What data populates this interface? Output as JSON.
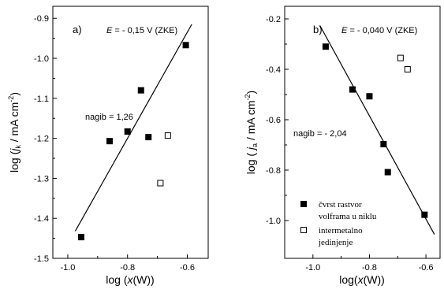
{
  "chart_data": [
    {
      "type": "scatter",
      "panel_label": "a)",
      "annotation_E": "E = - 0,15 V (ZKE)",
      "slope_label": "nagib = 1,26",
      "xlabel": "log (x(W))",
      "ylabel": "log (jk / mA cm-2)",
      "xlim": [
        -1.05,
        -0.53
      ],
      "ylim": [
        -1.5,
        -0.87
      ],
      "xticks": [
        -1.0,
        -0.8,
        -0.6
      ],
      "xtick_labels": [
        "-1.0",
        "-0.8",
        "-0.6"
      ],
      "yticks": [
        -1.5,
        -1.4,
        -1.3,
        -1.2,
        -1.1,
        -1.0,
        -0.9
      ],
      "ytick_labels": [
        "-1.5",
        "-1.4",
        "-1.3",
        "-1.2",
        "-1.1",
        "-1.0",
        "-0.9"
      ],
      "series": [
        {
          "marker": "filled-square",
          "x": [
            -0.955,
            -0.86,
            -0.8,
            -0.755,
            -0.73,
            -0.605
          ],
          "y": [
            -1.447,
            -1.207,
            -1.183,
            -1.08,
            -1.197,
            -0.967
          ]
        },
        {
          "marker": "open-square",
          "x": [
            -0.69,
            -0.665
          ],
          "y": [
            -1.312,
            -1.193
          ]
        }
      ],
      "fit_line": {
        "x": [
          -0.975,
          -0.585
        ],
        "y": [
          -1.432,
          -0.915
        ]
      }
    },
    {
      "type": "scatter",
      "panel_label": "b)",
      "annotation_E": "E = - 0,040 V (ZKE)",
      "slope_label": "nagib = - 2,04",
      "xlabel": "log(x(W))",
      "ylabel": "log ( ja / mA cm-2)",
      "xlim": [
        -1.1,
        -0.55
      ],
      "ylim": [
        -1.15,
        -0.15
      ],
      "xticks": [
        -1.0,
        -0.8,
        -0.6
      ],
      "xtick_labels": [
        "-1.0",
        "-0.8",
        "-0.6"
      ],
      "yticks": [
        -1.0,
        -0.8,
        -0.6,
        -0.4,
        -0.2
      ],
      "ytick_labels": [
        "-1.0",
        "-0.8",
        "-0.6",
        "-0.4",
        "-0.2"
      ],
      "legend_position": "bottom-left",
      "series": [
        {
          "name_lines": [
            "čvrst rastvor",
            "volframa u niklu"
          ],
          "marker": "filled-square",
          "x": [
            -0.955,
            -0.86,
            -0.8,
            -0.75,
            -0.735,
            -0.605
          ],
          "y": [
            -0.31,
            -0.48,
            -0.507,
            -0.697,
            -0.808,
            -0.977
          ]
        },
        {
          "name_lines": [
            "intermetalno",
            "jedinjenje"
          ],
          "marker": "open-square",
          "x": [
            -0.69,
            -0.665
          ],
          "y": [
            -0.355,
            -0.4
          ]
        }
      ],
      "fit_line": {
        "x": [
          -0.975,
          -0.57
        ],
        "y": [
          -0.227,
          -1.055
        ]
      }
    }
  ]
}
